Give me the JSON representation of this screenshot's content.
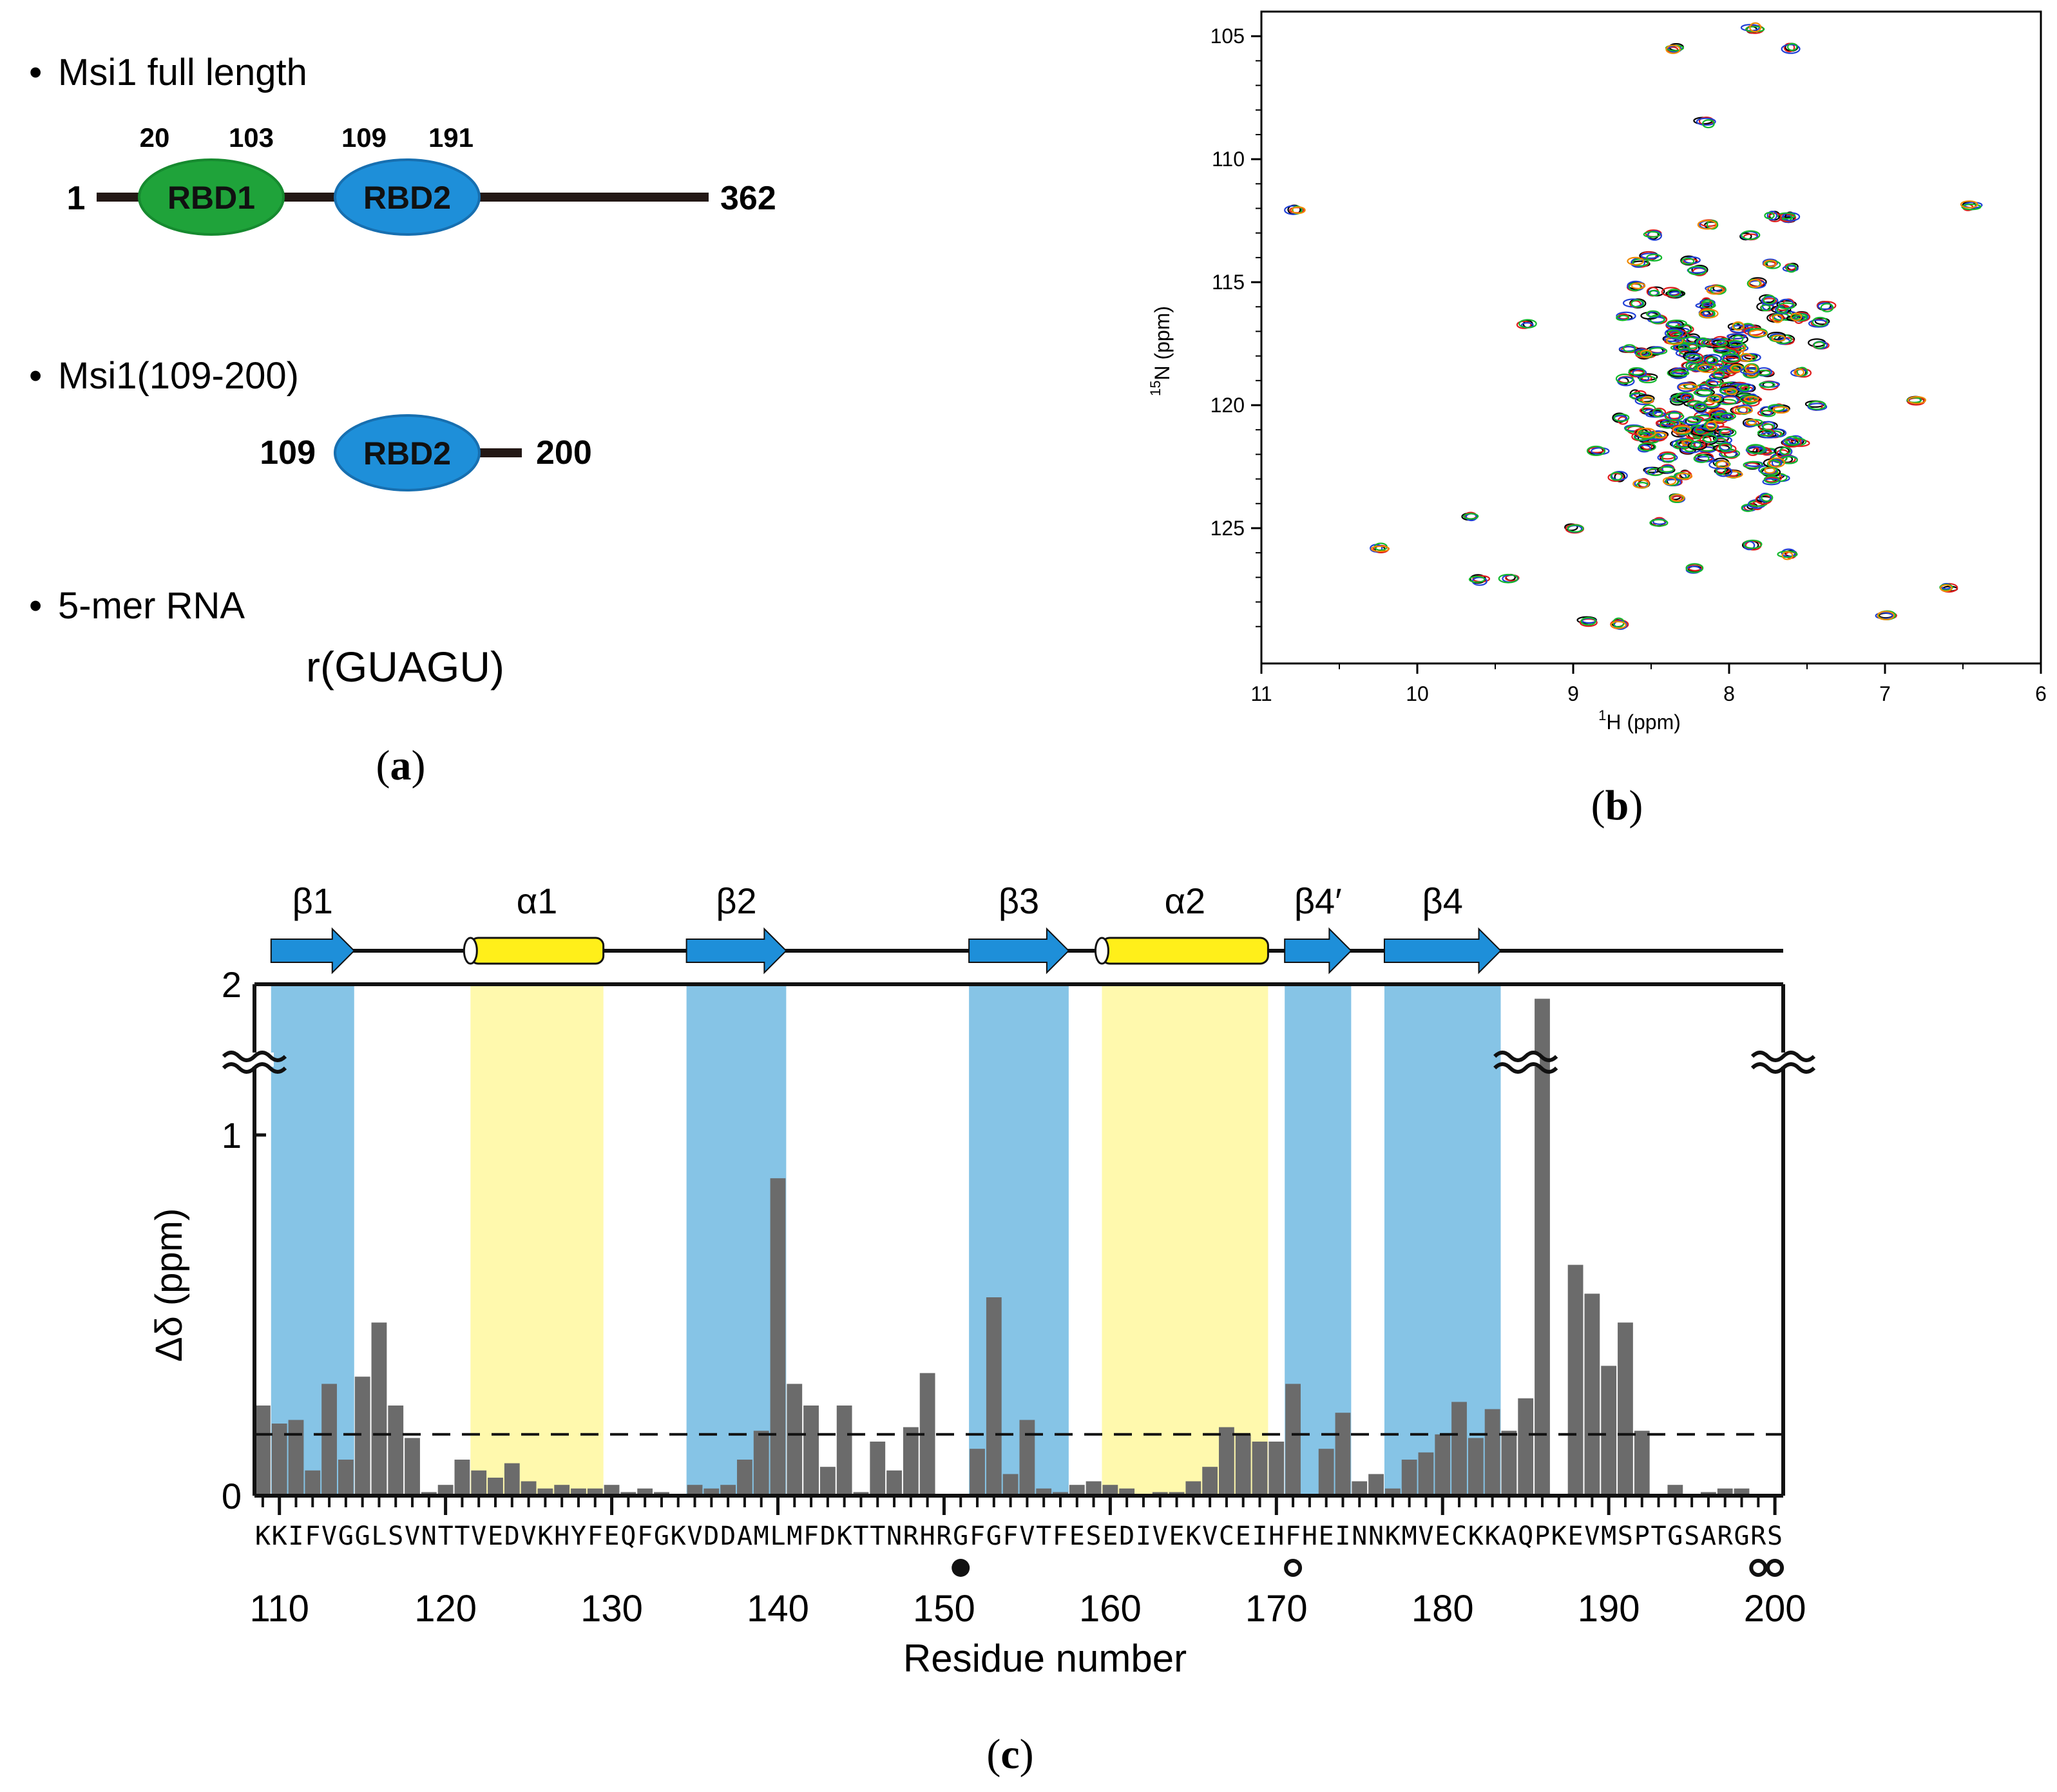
{
  "panel_a": {
    "label": "(a)",
    "bullet": "•",
    "full_length_title": "Msi1 full length",
    "full_start": "1",
    "full_end": "362",
    "rbd1_label": "RBD1",
    "rbd1_start": "20",
    "rbd1_end": "103",
    "rbd2_label": "RBD2",
    "rbd2_start": "109",
    "rbd2_end": "191",
    "construct_title": "Msi1(109-200)",
    "construct_start": "109",
    "construct_end": "200",
    "construct_domain": "RBD2",
    "rna_title": "5-mer RNA",
    "rna_seq": "r(GUAGU)",
    "colors": {
      "rbd1": "#1fa33a",
      "rbd2": "#1e8fd9",
      "line": "#231815"
    }
  },
  "panel_b": {
    "label": "(b)",
    "xlabel_sup": "1",
    "xlabel_main": "H  (ppm)",
    "ylabel_sup": "15",
    "ylabel_main": "N  (ppm)",
    "x_ticks": [
      "11",
      "10",
      "9",
      "8",
      "7",
      "6"
    ],
    "y_ticks": [
      "105",
      "110",
      "115",
      "120",
      "125"
    ],
    "peak_colors": [
      "#000000",
      "#e01b1b",
      "#1f3fd6",
      "#12b82c",
      "#f08a00"
    ]
  },
  "panel_c": {
    "label": "(c)",
    "ylabel": "Δδ  (ppm)",
    "xlabel": "Residue number",
    "y_ticks": [
      "0",
      "1",
      "2"
    ],
    "x_ticks": [
      "110",
      "120",
      "130",
      "140",
      "150",
      "160",
      "170",
      "180",
      "190",
      "200"
    ],
    "sequence": "KKIFVGGLSVNTTVEDVKHYFEQFGKVDDAMLMFDKTTNRHRGFGFVTFESEDIVEKVCEIHFHEINNKMVECKKAQPKEVMSPTGSARGRS",
    "threshold_ppm": 0.17,
    "secondary_structure": [
      {
        "name": "β1",
        "type": "strand",
        "start": 110,
        "end": 114
      },
      {
        "name": "α1",
        "type": "helix",
        "start": 122,
        "end": 129
      },
      {
        "name": "β2",
        "type": "strand",
        "start": 135,
        "end": 140
      },
      {
        "name": "β3",
        "type": "strand",
        "start": 152,
        "end": 157
      },
      {
        "name": "α2",
        "type": "helix",
        "start": 160,
        "end": 169
      },
      {
        "name": "β4′",
        "type": "strand",
        "start": 171,
        "end": 174
      },
      {
        "name": "β4",
        "type": "strand",
        "start": 177,
        "end": 183
      }
    ],
    "markers": [
      {
        "residue": 151,
        "kind": "filled"
      },
      {
        "residue": 171,
        "kind": "open"
      },
      {
        "residue": 199,
        "kind": "open"
      },
      {
        "residue": 200,
        "kind": "open"
      }
    ],
    "colors": {
      "strand": "#1e8fd9",
      "strand_bg": "#86c4e6",
      "helix": "#ffef1a",
      "helix_bg": "#fff9ad",
      "bar": "#6b6b6b"
    }
  },
  "chart_data": {
    "type": "bar",
    "title": "",
    "xlabel": "Residue number",
    "ylabel": "Δδ (ppm)",
    "ylim": [
      0,
      2
    ],
    "axis_break": "broken y-axis between 1.2 and 2",
    "categories": [
      109,
      110,
      111,
      112,
      113,
      114,
      115,
      116,
      117,
      118,
      119,
      120,
      121,
      122,
      123,
      124,
      125,
      126,
      127,
      128,
      129,
      130,
      131,
      132,
      133,
      134,
      135,
      136,
      137,
      138,
      139,
      140,
      141,
      142,
      143,
      144,
      145,
      146,
      147,
      148,
      149,
      150,
      151,
      152,
      153,
      154,
      155,
      156,
      157,
      158,
      159,
      160,
      161,
      162,
      163,
      164,
      165,
      166,
      167,
      168,
      169,
      170,
      171,
      172,
      173,
      174,
      175,
      176,
      177,
      178,
      179,
      180,
      181,
      182,
      183,
      184,
      185,
      186,
      187,
      188,
      189,
      190,
      191,
      192,
      193,
      194,
      195,
      196,
      197,
      198,
      199,
      200
    ],
    "values": [
      0.25,
      0.2,
      0.21,
      0.07,
      0.31,
      0.1,
      0.33,
      0.48,
      0.25,
      0.16,
      0.01,
      0.03,
      0.1,
      0.07,
      0.05,
      0.09,
      0.04,
      0.02,
      0.03,
      0.02,
      0.02,
      0.03,
      0.01,
      0.02,
      0.01,
      0.0,
      0.03,
      0.02,
      0.03,
      0.1,
      0.18,
      0.88,
      0.31,
      0.25,
      0.08,
      0.25,
      0.01,
      0.15,
      0.07,
      0.19,
      0.34,
      0.0,
      0.0,
      0.13,
      0.55,
      0.06,
      0.21,
      0.02,
      0.01,
      0.03,
      0.04,
      0.03,
      0.02,
      0.0,
      0.01,
      0.01,
      0.04,
      0.08,
      0.19,
      0.17,
      0.15,
      0.15,
      0.31,
      0.0,
      0.13,
      0.23,
      0.04,
      0.06,
      0.02,
      0.1,
      0.12,
      0.17,
      0.26,
      0.16,
      0.24,
      0.18,
      0.27,
      1.85,
      0.0,
      0.64,
      0.56,
      0.36,
      0.48,
      0.18,
      0.0,
      0.03,
      0.0,
      0.01,
      0.02,
      0.02,
      0.0,
      0.0
    ],
    "threshold": 0.17
  }
}
